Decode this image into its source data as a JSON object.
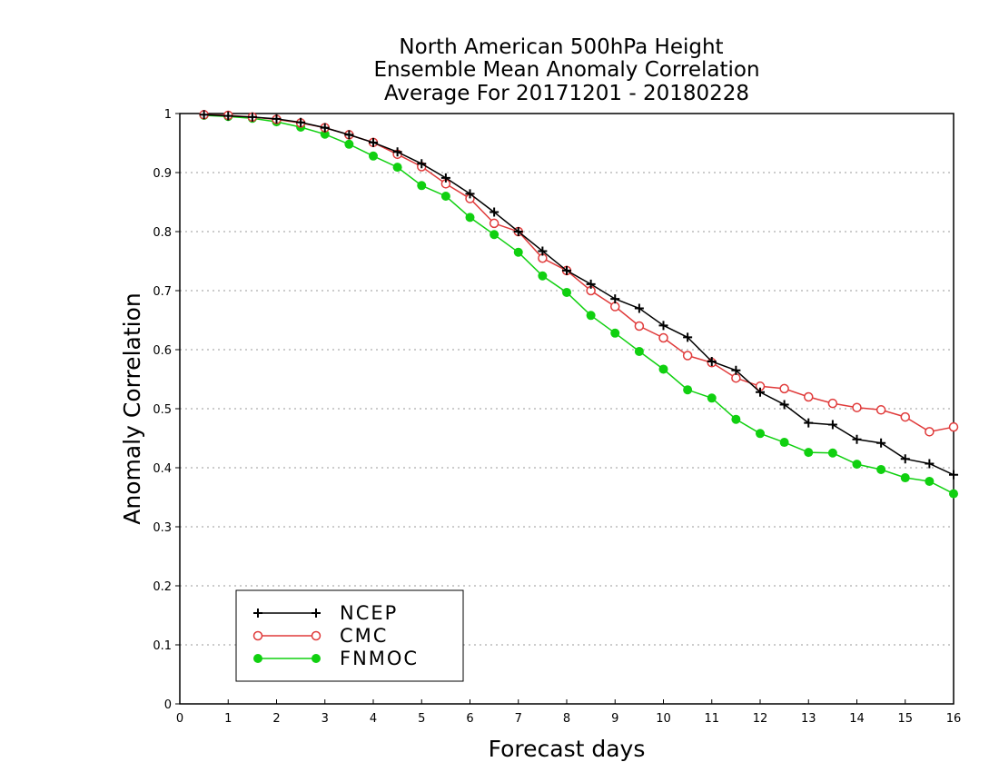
{
  "chart_data": {
    "type": "line",
    "title": [
      "North American 500hPa Height",
      "Ensemble Mean Anomaly Correlation",
      "Average For 20171201 - 20180228"
    ],
    "xlabel": "Forecast days",
    "ylabel": "Anomaly Correlation",
    "xlim": [
      0,
      16
    ],
    "ylim": [
      0,
      1
    ],
    "x_ticks": [
      "0",
      "1",
      "2",
      "3",
      "4",
      "5",
      "6",
      "7",
      "8",
      "9",
      "10",
      "11",
      "12",
      "13",
      "14",
      "15",
      "16"
    ],
    "y_ticks": [
      "0",
      "0.1",
      "0.2",
      "0.3",
      "0.4",
      "0.5",
      "0.6",
      "0.7",
      "0.8",
      "0.9",
      "1"
    ],
    "grid": "dotted horizontal",
    "legend_position": "bottom-left",
    "x": [
      0.5,
      1,
      1.5,
      2,
      2.5,
      3,
      3.5,
      4,
      4.5,
      5,
      5.5,
      6,
      6.5,
      7,
      7.5,
      8,
      8.5,
      9,
      9.5,
      10,
      10.5,
      11,
      11.5,
      12,
      12.5,
      13,
      13.5,
      14,
      14.5,
      15,
      15.5,
      16
    ],
    "series": [
      {
        "name": "NCEP",
        "color": "#000000",
        "marker": "plus",
        "values": [
          0.998,
          0.996,
          0.994,
          0.991,
          0.985,
          0.976,
          0.964,
          0.951,
          0.935,
          0.915,
          0.891,
          0.864,
          0.833,
          0.8,
          0.767,
          0.734,
          0.711,
          0.686,
          0.67,
          0.641,
          0.621,
          0.58,
          0.565,
          0.528,
          0.507,
          0.476,
          0.473,
          0.448,
          0.442,
          0.415,
          0.407,
          0.388
        ]
      },
      {
        "name": "CMC",
        "color": "#e03a3a",
        "marker": "open-circle",
        "values": [
          0.998,
          0.997,
          0.994,
          0.99,
          0.984,
          0.976,
          0.964,
          0.951,
          0.931,
          0.91,
          0.881,
          0.856,
          0.814,
          0.8,
          0.755,
          0.734,
          0.7,
          0.673,
          0.64,
          0.62,
          0.59,
          0.578,
          0.552,
          0.538,
          0.534,
          0.52,
          0.509,
          0.502,
          0.498,
          0.486,
          0.461,
          0.469
        ]
      },
      {
        "name": "FNMOC",
        "color": "#10d010",
        "marker": "filled-circle",
        "values": [
          0.997,
          0.995,
          0.992,
          0.986,
          0.977,
          0.965,
          0.948,
          0.928,
          0.909,
          0.878,
          0.86,
          0.824,
          0.795,
          0.765,
          0.725,
          0.697,
          0.658,
          0.628,
          0.597,
          0.567,
          0.532,
          0.518,
          0.482,
          0.458,
          0.443,
          0.426,
          0.425,
          0.406,
          0.397,
          0.383,
          0.377,
          0.356
        ]
      }
    ]
  }
}
